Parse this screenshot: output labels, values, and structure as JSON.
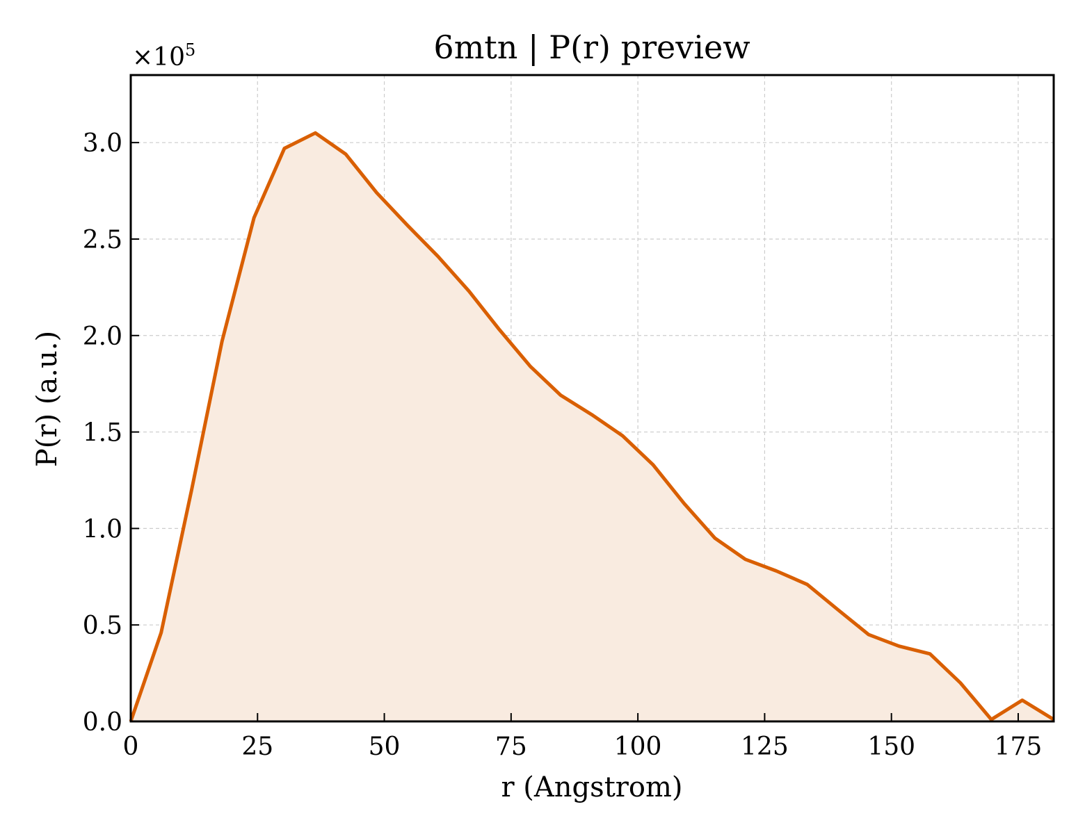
{
  "chart_data": {
    "type": "area",
    "title": "6mtn | P(r) preview",
    "xlabel": "r (Angstrom)",
    "ylabel": "P(r) (a.u.)",
    "y_multiplier_base": "×10",
    "y_multiplier_exp": "5",
    "xlim": [
      0,
      182
    ],
    "ylim": [
      0,
      3.35
    ],
    "xticks": [
      0,
      25,
      50,
      75,
      100,
      125,
      150,
      175
    ],
    "xtick_labels": [
      "0",
      "25",
      "50",
      "75",
      "100",
      "125",
      "150",
      "175"
    ],
    "yticks": [
      0,
      0.5,
      1.0,
      1.5,
      2.0,
      2.5,
      3.0
    ],
    "ytick_labels": [
      "0.0",
      "0.5",
      "1.0",
      "1.5",
      "2.0",
      "2.5",
      "3.0"
    ],
    "grid": true,
    "line_color": "#D95F02",
    "fill_color": "#F9EBE0",
    "series": [
      {
        "x": [
          0,
          6,
          12,
          18,
          24.3,
          30.3,
          36.4,
          42.4,
          48.5,
          54.6,
          60.6,
          66.7,
          72.7,
          78.8,
          84.8,
          90.9,
          97,
          103,
          109.1,
          115.2,
          121.2,
          127.3,
          133.4,
          139.4,
          145.5,
          151.5,
          157.6,
          163.6,
          169.7,
          175.8,
          182
        ],
        "y": [
          0,
          0.46,
          1.2,
          1.97,
          2.61,
          2.97,
          3.05,
          2.94,
          2.74,
          2.57,
          2.41,
          2.23,
          2.03,
          1.84,
          1.69,
          1.59,
          1.48,
          1.33,
          1.13,
          0.95,
          0.84,
          0.78,
          0.71,
          0.58,
          0.45,
          0.39,
          0.35,
          0.2,
          0.01,
          0.11,
          0.01
        ]
      }
    ]
  }
}
